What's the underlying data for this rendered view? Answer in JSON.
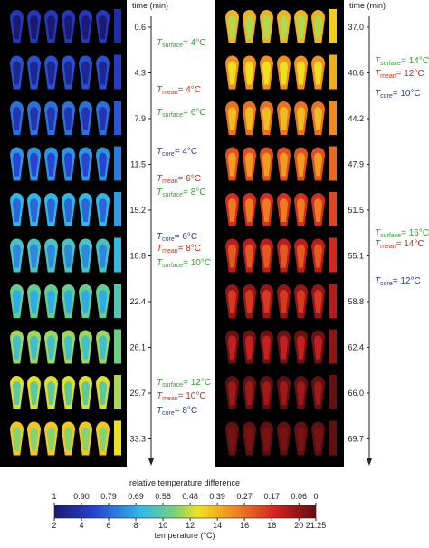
{
  "time_label": "time (min)",
  "panels": [
    {
      "times": [
        "0.6",
        "4.3",
        "7.9",
        "11.5",
        "15.2",
        "18.8",
        "22.4",
        "26.1",
        "29.7",
        "33.3"
      ],
      "annotations": [
        {
          "symbol": "T",
          "subscript": "surface",
          "text": "= 4°C",
          "kind": "surface"
        },
        {
          "symbol": "T",
          "subscript": "mean",
          "text": "= 4°C",
          "kind": "mean"
        },
        {
          "symbol": "T",
          "subscript": "surface",
          "text": "= 6°C",
          "kind": "surface"
        },
        {
          "symbol": "T",
          "subscript": "core",
          "text": "= 4°C",
          "kind": "core"
        },
        {
          "symbol": "T",
          "subscript": "mean",
          "text": "= 6°C",
          "kind": "mean"
        },
        {
          "symbol": "T",
          "subscript": "surface",
          "text": "= 8°C",
          "kind": "surface"
        },
        {
          "symbol": "T",
          "subscript": "core",
          "text": "= 6°C",
          "kind": "core"
        },
        {
          "symbol": "T",
          "subscript": "mean",
          "text": "= 8°C",
          "kind": "mean"
        },
        {
          "symbol": "T",
          "subscript": "surface",
          "text": "= 10°C",
          "kind": "surface"
        },
        {
          "symbol": "T",
          "subscript": "surface",
          "text": "= 12°C",
          "kind": "surface"
        },
        {
          "symbol": "T",
          "subscript": "mean",
          "text": "= 10°C",
          "kind": "mean"
        },
        {
          "symbol": "T",
          "subscript": "core",
          "text": "= 8°C",
          "kind": "core"
        }
      ]
    },
    {
      "times": [
        "37.0",
        "40.6",
        "44.2",
        "47.9",
        "51.5",
        "55.1",
        "58.8",
        "62.4",
        "66.0",
        "69.7"
      ],
      "annotations": [
        {
          "symbol": "T",
          "subscript": "surface",
          "text": "= 14°C",
          "kind": "surface"
        },
        {
          "symbol": "T",
          "subscript": "mean",
          "text": "= 12°C",
          "kind": "mean"
        },
        {
          "symbol": "T",
          "subscript": "core",
          "text": "= 10°C",
          "kind": "core"
        },
        {
          "symbol": "T",
          "subscript": "surface",
          "text": "= 16°C",
          "kind": "surface"
        },
        {
          "symbol": "T",
          "subscript": "mean",
          "text": "= 14°C",
          "kind": "mean"
        },
        {
          "symbol": "T",
          "subscript": "core",
          "text": "= 12°C",
          "kind": "core"
        }
      ]
    }
  ],
  "colorbar": {
    "title_top": "relative temperature difference",
    "title_bottom": "temperature (°C)",
    "relative_labels": [
      "1",
      "0.90",
      "0.79",
      "0.69",
      "0.58",
      "0.48",
      "0.39",
      "0.27",
      "0.17",
      "0.06",
      "0"
    ],
    "temperatures": [
      2,
      4,
      6,
      8,
      10,
      12,
      14,
      16,
      18,
      20,
      21.25
    ]
  }
}
